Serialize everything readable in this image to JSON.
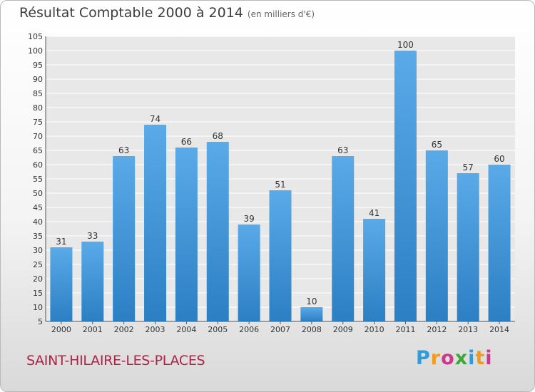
{
  "page": {
    "title": "Résultat Comptable 2000 à 2014",
    "subtitle": "(en milliers d'€)",
    "commune": "SAINT-HILAIRE-LES-PLACES",
    "logo": [
      "P",
      "r",
      "o",
      "x",
      "i",
      "t",
      "i"
    ],
    "logo_colors": [
      "#2f9bd9",
      "#f29a1e",
      "#c83a8c",
      "#3aa935",
      "#2f9bd9",
      "#f29a1e",
      "#c83a8c"
    ]
  },
  "chart_data": {
    "type": "bar",
    "title": "Résultat Comptable 2000 à 2014",
    "subtitle": "(en milliers d'€)",
    "categories": [
      "2000",
      "2001",
      "2002",
      "2003",
      "2004",
      "2005",
      "2006",
      "2007",
      "2008",
      "2009",
      "2010",
      "2011",
      "2012",
      "2013",
      "2014"
    ],
    "values": [
      31,
      33,
      63,
      74,
      66,
      68,
      39,
      51,
      10,
      63,
      41,
      100,
      65,
      57,
      60
    ],
    "ylim": [
      5,
      105
    ],
    "yticks": [
      5,
      10,
      15,
      20,
      25,
      30,
      35,
      40,
      45,
      50,
      55,
      60,
      65,
      70,
      75,
      80,
      85,
      90,
      95,
      100,
      105
    ],
    "grid": true,
    "bar_color_top": "#5aaae8",
    "bar_color_bottom": "#2b7fc3"
  }
}
